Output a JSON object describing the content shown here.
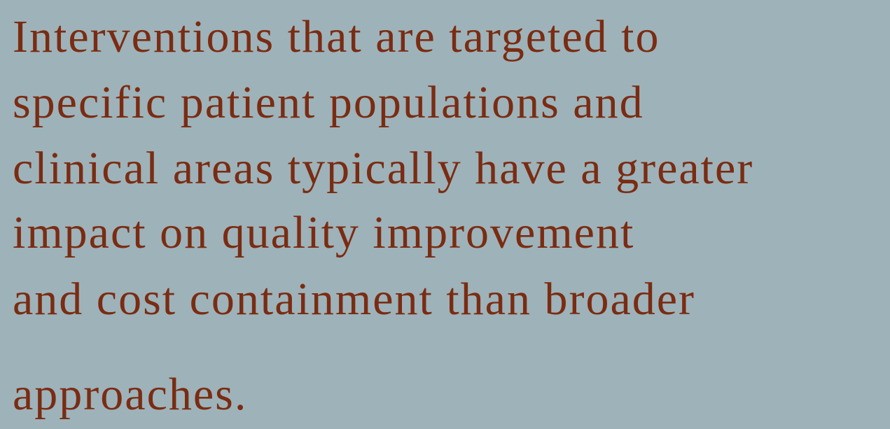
{
  "body": {
    "lines": [
      "Interventions that are targeted to",
      "specific patient populations and",
      "clinical areas typically have a greater",
      "impact on quality improvement",
      "and cost containment than broader",
      "approaches."
    ]
  }
}
